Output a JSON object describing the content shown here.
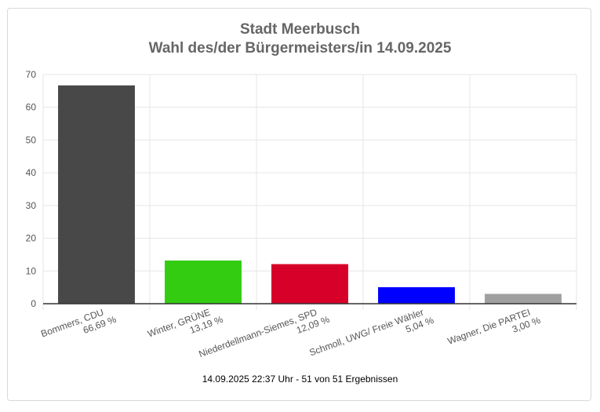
{
  "title_line1": "Stadt Meerbusch",
  "title_line2": "Wahl des/der Bürgermeisters/in 14.09.2025",
  "footer": "14.09.2025 22:37 Uhr - 51 von 51 Ergebnissen",
  "chart_data": {
    "type": "bar",
    "title": "Stadt Meerbusch",
    "subtitle": "Wahl des/der Bürgermeisters/in 14.09.2025",
    "xlabel": "",
    "ylabel": "",
    "ylim": [
      0,
      70
    ],
    "yticks": [
      0,
      10,
      20,
      30,
      40,
      50,
      60,
      70
    ],
    "grid": true,
    "categories": [
      "Bommers, CDU",
      "Winter, GRÜNE",
      "Niederdellmann-Siemes, SPD",
      "Schmoll, UWG/ Freie Wähler",
      "Wagner, Die PARTEI"
    ],
    "value_labels": [
      "66,69 %",
      "13,19 %",
      "12,09 %",
      "5,04 %",
      "3,00 %"
    ],
    "values": [
      66.69,
      13.19,
      12.09,
      5.04,
      3.0
    ],
    "colors": [
      "#484848",
      "#33cc11",
      "#d70028",
      "#0000ff",
      "#a0a0a0"
    ]
  }
}
